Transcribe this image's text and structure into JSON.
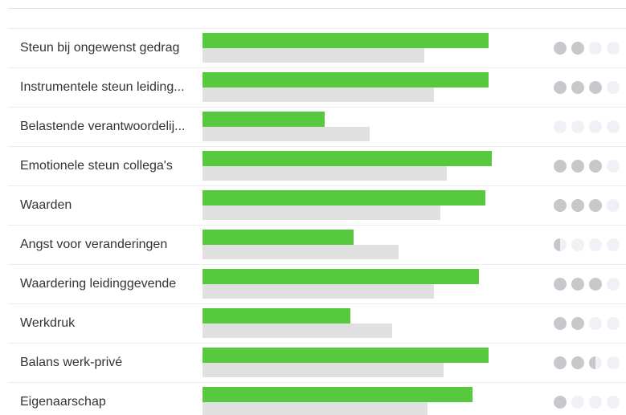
{
  "chart_data": {
    "type": "bar",
    "categories": [
      "Steun bij ongewenst gedrag",
      "Instrumentele steun leiding...",
      "Belastende verantwoordelij...",
      "Emotionele steun collega's",
      "Waarden",
      "Angst voor veranderingen",
      "Waardering leidinggevende",
      "Werkdruk",
      "Balans werk-privé",
      "Eigenaarschap"
    ],
    "series": [
      {
        "color": "#57c93f",
        "values": [
          89,
          89,
          38,
          90,
          88,
          47,
          86,
          46,
          89,
          84
        ]
      },
      {
        "color": "#e0e0e0",
        "values": [
          69,
          72,
          52,
          76,
          74,
          61,
          72,
          59,
          75,
          70
        ]
      }
    ],
    "xlim": [
      0,
      100
    ],
    "ratings": [
      2,
      3,
      0,
      3,
      3,
      0.5,
      3,
      2,
      2.5,
      1
    ],
    "rating_max": 4,
    "rating_color": "#c8c8cc",
    "rating_empty_color": "#f0f0f6"
  }
}
